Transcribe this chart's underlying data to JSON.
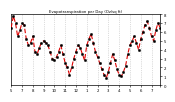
{
  "title": "Evapotranspiration per Day (Oz/sq ft)",
  "line_color": "#dd0000",
  "marker_color": "#000000",
  "background_color": "#ffffff",
  "ylim": [
    0,
    8
  ],
  "yticks": [
    0,
    1,
    2,
    3,
    4,
    5,
    6,
    7,
    8
  ],
  "ytick_labels": [
    "0",
    "1",
    "2",
    "3",
    "4",
    "5",
    "6",
    "7",
    "8"
  ],
  "x_values": [
    1,
    2,
    3,
    4,
    5,
    6,
    7,
    8,
    9,
    10,
    11,
    12,
    13,
    14,
    15,
    16,
    17,
    18,
    19,
    20,
    21,
    22,
    23,
    24,
    25,
    26,
    27,
    28,
    29,
    30,
    31,
    32,
    33,
    34,
    35,
    36,
    37,
    38,
    39,
    40,
    41,
    42,
    43,
    44,
    45,
    46,
    47,
    48,
    49,
    50,
    51,
    52,
    53,
    54,
    55,
    56,
    57,
    58,
    59,
    60,
    61,
    62,
    63,
    64,
    65,
    66,
    67,
    68,
    69,
    70
  ],
  "y_values": [
    6.5,
    7.8,
    7.0,
    5.5,
    6.2,
    7.0,
    6.8,
    5.2,
    4.5,
    4.8,
    5.5,
    3.8,
    3.5,
    4.2,
    4.8,
    5.0,
    4.8,
    4.5,
    3.8,
    3.0,
    2.8,
    3.2,
    3.8,
    4.5,
    3.5,
    2.5,
    2.0,
    1.2,
    2.0,
    3.0,
    3.8,
    4.5,
    4.2,
    3.5,
    2.8,
    4.5,
    5.2,
    5.8,
    4.8,
    3.8,
    3.2,
    2.5,
    1.8,
    1.2,
    0.8,
    1.5,
    2.5,
    3.5,
    2.8,
    1.8,
    1.2,
    1.0,
    1.5,
    2.2,
    3.5,
    4.5,
    5.0,
    5.5,
    4.8,
    4.0,
    5.2,
    6.0,
    6.8,
    7.2,
    6.5,
    5.5,
    5.0,
    6.2,
    7.0,
    6.5
  ],
  "x_tick_positions": [
    1,
    6,
    11,
    16,
    21,
    26,
    31,
    36,
    41,
    46,
    51,
    56,
    61,
    66,
    70
  ],
  "x_tick_labels": [
    "5",
    "7",
    "8",
    "9",
    "10",
    "11",
    "12",
    "1",
    "2",
    "3",
    "4",
    "5",
    "6",
    "7",
    ""
  ],
  "grid_positions": [
    6,
    11,
    16,
    21,
    26,
    31,
    36,
    41,
    46,
    51,
    56,
    61,
    66
  ]
}
